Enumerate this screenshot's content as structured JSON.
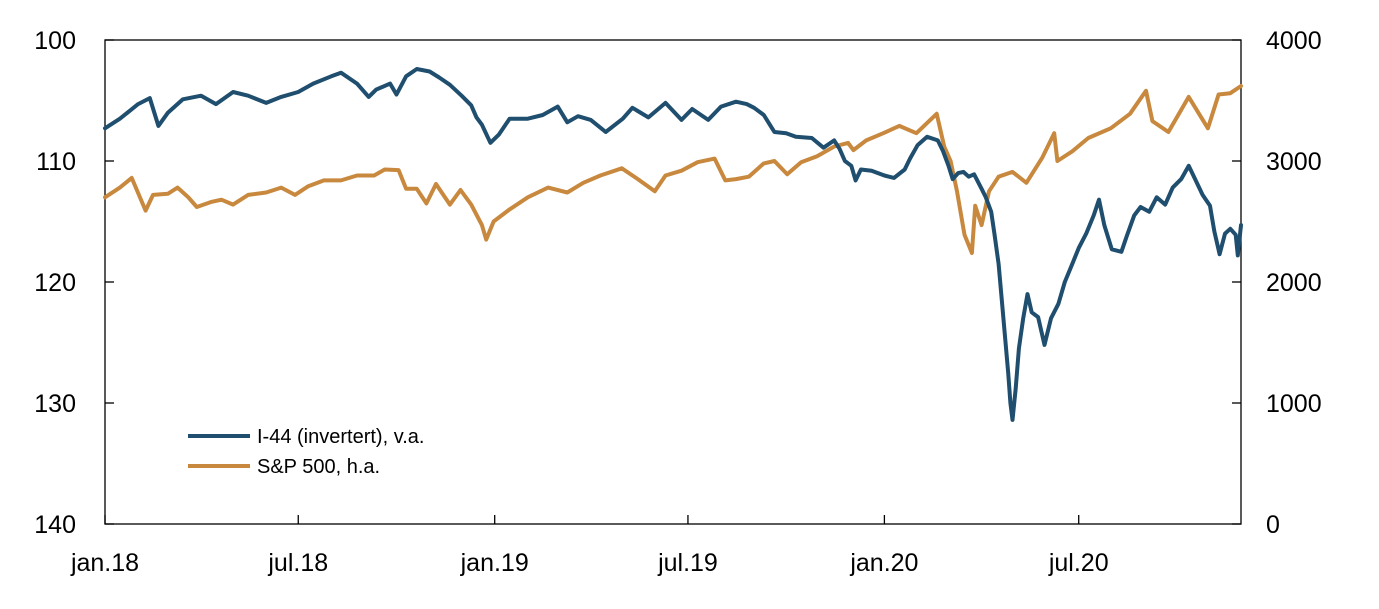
{
  "chart_data": {
    "type": "line",
    "title": "",
    "xlabel": "",
    "ylabel_left": "",
    "ylabel_right": "",
    "x_ticks": [
      {
        "date": "2018-01-01",
        "label": "jan.18"
      },
      {
        "date": "2018-07-01",
        "label": "jul.18"
      },
      {
        "date": "2019-01-01",
        "label": "jan.19"
      },
      {
        "date": "2019-07-01",
        "label": "jul.19"
      },
      {
        "date": "2020-01-01",
        "label": "jan.20"
      },
      {
        "date": "2020-07-01",
        "label": "jul.20"
      }
    ],
    "xlim": [
      "2018-01-01",
      "2020-11-30"
    ],
    "y_left": {
      "range": [
        100,
        140
      ],
      "inverted": true,
      "ticks": [
        100,
        110,
        120,
        130,
        140
      ]
    },
    "y_right": {
      "range": [
        0,
        4000
      ],
      "ticks": [
        0,
        1000,
        2000,
        3000,
        4000
      ]
    },
    "grid": false,
    "legend_position": "bottom-left",
    "series": [
      {
        "name": "I-44 (invertert), v.a.",
        "axis": "left",
        "color": "#1f4e6e",
        "points": [
          [
            "2018-01-01",
            107.3
          ],
          [
            "2018-01-15",
            106.5
          ],
          [
            "2018-02-01",
            105.3
          ],
          [
            "2018-02-12",
            104.8
          ],
          [
            "2018-02-20",
            107.1
          ],
          [
            "2018-03-01",
            106.0
          ],
          [
            "2018-03-15",
            104.9
          ],
          [
            "2018-04-01",
            104.6
          ],
          [
            "2018-04-15",
            105.3
          ],
          [
            "2018-05-01",
            104.3
          ],
          [
            "2018-05-15",
            104.6
          ],
          [
            "2018-06-01",
            105.2
          ],
          [
            "2018-06-15",
            104.7
          ],
          [
            "2018-07-01",
            104.3
          ],
          [
            "2018-07-15",
            103.6
          ],
          [
            "2018-08-01",
            103.0
          ],
          [
            "2018-08-10",
            102.7
          ],
          [
            "2018-08-25",
            103.6
          ],
          [
            "2018-09-05",
            104.7
          ],
          [
            "2018-09-12",
            104.1
          ],
          [
            "2018-09-25",
            103.6
          ],
          [
            "2018-10-01",
            104.5
          ],
          [
            "2018-10-10",
            103.0
          ],
          [
            "2018-10-20",
            102.4
          ],
          [
            "2018-11-01",
            102.6
          ],
          [
            "2018-11-10",
            103.1
          ],
          [
            "2018-11-20",
            103.7
          ],
          [
            "2018-12-01",
            104.6
          ],
          [
            "2018-12-10",
            105.4
          ],
          [
            "2018-12-15",
            106.4
          ],
          [
            "2018-12-20",
            107.0
          ],
          [
            "2018-12-28",
            108.5
          ],
          [
            "2019-01-05",
            107.8
          ],
          [
            "2019-01-15",
            106.5
          ],
          [
            "2019-02-01",
            106.5
          ],
          [
            "2019-02-15",
            106.2
          ],
          [
            "2019-03-01",
            105.5
          ],
          [
            "2019-03-10",
            106.8
          ],
          [
            "2019-03-20",
            106.3
          ],
          [
            "2019-04-01",
            106.6
          ],
          [
            "2019-04-15",
            107.6
          ],
          [
            "2019-05-01",
            106.5
          ],
          [
            "2019-05-10",
            105.6
          ],
          [
            "2019-05-25",
            106.4
          ],
          [
            "2019-06-10",
            105.2
          ],
          [
            "2019-06-25",
            106.6
          ],
          [
            "2019-07-05",
            105.7
          ],
          [
            "2019-07-20",
            106.6
          ],
          [
            "2019-08-01",
            105.5
          ],
          [
            "2019-08-15",
            105.1
          ],
          [
            "2019-08-25",
            105.3
          ],
          [
            "2019-09-01",
            105.6
          ],
          [
            "2019-09-10",
            106.2
          ],
          [
            "2019-09-20",
            107.6
          ],
          [
            "2019-10-01",
            107.7
          ],
          [
            "2019-10-10",
            108.0
          ],
          [
            "2019-10-25",
            108.1
          ],
          [
            "2019-11-05",
            108.9
          ],
          [
            "2019-11-15",
            108.3
          ],
          [
            "2019-11-20",
            109.0
          ],
          [
            "2019-11-25",
            110.0
          ],
          [
            "2019-12-01",
            110.4
          ],
          [
            "2019-12-05",
            111.6
          ],
          [
            "2019-12-10",
            110.7
          ],
          [
            "2019-12-20",
            110.8
          ],
          [
            "2020-01-01",
            111.2
          ],
          [
            "2020-01-10",
            111.4
          ],
          [
            "2020-01-20",
            110.7
          ],
          [
            "2020-01-25",
            109.8
          ],
          [
            "2020-02-01",
            108.7
          ],
          [
            "2020-02-10",
            108.0
          ],
          [
            "2020-02-20",
            108.3
          ],
          [
            "2020-02-25",
            109.2
          ],
          [
            "2020-03-01",
            110.4
          ],
          [
            "2020-03-05",
            111.5
          ],
          [
            "2020-03-10",
            111.0
          ],
          [
            "2020-03-15",
            110.9
          ],
          [
            "2020-03-20",
            111.3
          ],
          [
            "2020-03-25",
            111.1
          ],
          [
            "2020-04-01",
            112.3
          ],
          [
            "2020-04-05",
            113.0
          ],
          [
            "2020-04-10",
            114.2
          ],
          [
            "2020-04-13",
            116.0
          ],
          [
            "2020-04-17",
            118.5
          ],
          [
            "2020-04-20",
            121.5
          ],
          [
            "2020-04-23",
            124.5
          ],
          [
            "2020-04-26",
            127.5
          ],
          [
            "2020-04-28",
            130.0
          ],
          [
            "2020-04-30",
            131.4
          ],
          [
            "2020-05-03",
            128.8
          ],
          [
            "2020-05-06",
            125.5
          ],
          [
            "2020-05-10",
            123.0
          ],
          [
            "2020-05-14",
            121.0
          ],
          [
            "2020-05-18",
            122.5
          ],
          [
            "2020-05-24",
            122.9
          ],
          [
            "2020-05-30",
            125.2
          ],
          [
            "2020-06-05",
            123.0
          ],
          [
            "2020-06-12",
            121.8
          ],
          [
            "2020-06-18",
            120.0
          ],
          [
            "2020-06-25",
            118.5
          ],
          [
            "2020-07-01",
            117.2
          ],
          [
            "2020-07-08",
            116.0
          ],
          [
            "2020-07-15",
            114.5
          ],
          [
            "2020-07-20",
            113.2
          ],
          [
            "2020-07-25",
            115.3
          ],
          [
            "2020-08-01",
            117.3
          ],
          [
            "2020-08-10",
            117.5
          ],
          [
            "2020-08-15",
            116.2
          ],
          [
            "2020-08-22",
            114.5
          ],
          [
            "2020-08-28",
            113.8
          ],
          [
            "2020-09-05",
            114.2
          ],
          [
            "2020-09-12",
            113.0
          ],
          [
            "2020-09-20",
            113.6
          ],
          [
            "2020-09-27",
            112.2
          ],
          [
            "2020-10-05",
            111.5
          ],
          [
            "2020-10-12",
            110.4
          ],
          [
            "2020-10-18",
            111.5
          ],
          [
            "2020-10-25",
            112.8
          ],
          [
            "2020-11-01",
            113.7
          ],
          [
            "2020-11-05",
            115.8
          ],
          [
            "2020-11-10",
            117.7
          ],
          [
            "2020-11-15",
            116.0
          ],
          [
            "2020-11-20",
            115.6
          ],
          [
            "2020-11-25",
            116.1
          ],
          [
            "2020-11-27",
            117.8
          ],
          [
            "2020-11-30",
            115.3
          ]
        ]
      },
      {
        "name": "S&P 500, h.a.",
        "axis": "right",
        "color": "#c8893f",
        "points": [
          [
            "2018-01-01",
            2700
          ],
          [
            "2018-01-15",
            2780
          ],
          [
            "2018-01-26",
            2860
          ],
          [
            "2018-02-08",
            2590
          ],
          [
            "2018-02-15",
            2720
          ],
          [
            "2018-03-01",
            2730
          ],
          [
            "2018-03-10",
            2780
          ],
          [
            "2018-03-20",
            2700
          ],
          [
            "2018-03-28",
            2620
          ],
          [
            "2018-04-10",
            2660
          ],
          [
            "2018-04-20",
            2680
          ],
          [
            "2018-05-01",
            2640
          ],
          [
            "2018-05-15",
            2720
          ],
          [
            "2018-06-01",
            2740
          ],
          [
            "2018-06-15",
            2780
          ],
          [
            "2018-06-28",
            2720
          ],
          [
            "2018-07-10",
            2790
          ],
          [
            "2018-07-25",
            2840
          ],
          [
            "2018-08-10",
            2840
          ],
          [
            "2018-08-25",
            2880
          ],
          [
            "2018-09-10",
            2880
          ],
          [
            "2018-09-20",
            2930
          ],
          [
            "2018-10-03",
            2925
          ],
          [
            "2018-10-10",
            2770
          ],
          [
            "2018-10-20",
            2770
          ],
          [
            "2018-10-29",
            2650
          ],
          [
            "2018-11-07",
            2810
          ],
          [
            "2018-11-20",
            2640
          ],
          [
            "2018-11-30",
            2760
          ],
          [
            "2018-12-10",
            2640
          ],
          [
            "2018-12-20",
            2470
          ],
          [
            "2018-12-24",
            2350
          ],
          [
            "2018-12-31",
            2500
          ],
          [
            "2019-01-15",
            2600
          ],
          [
            "2019-02-01",
            2700
          ],
          [
            "2019-02-20",
            2780
          ],
          [
            "2019-03-10",
            2740
          ],
          [
            "2019-03-25",
            2820
          ],
          [
            "2019-04-10",
            2880
          ],
          [
            "2019-04-30",
            2940
          ],
          [
            "2019-05-15",
            2850
          ],
          [
            "2019-05-31",
            2750
          ],
          [
            "2019-06-10",
            2880
          ],
          [
            "2019-06-25",
            2920
          ],
          [
            "2019-07-10",
            2990
          ],
          [
            "2019-07-26",
            3020
          ],
          [
            "2019-08-05",
            2840
          ],
          [
            "2019-08-15",
            2850
          ],
          [
            "2019-08-27",
            2870
          ],
          [
            "2019-09-10",
            2980
          ],
          [
            "2019-09-20",
            3000
          ],
          [
            "2019-10-02",
            2890
          ],
          [
            "2019-10-15",
            2990
          ],
          [
            "2019-10-30",
            3040
          ],
          [
            "2019-11-15",
            3120
          ],
          [
            "2019-11-28",
            3150
          ],
          [
            "2019-12-03",
            3090
          ],
          [
            "2019-12-15",
            3170
          ],
          [
            "2019-12-31",
            3230
          ],
          [
            "2020-01-15",
            3290
          ],
          [
            "2020-01-31",
            3230
          ],
          [
            "2020-02-19",
            3390
          ],
          [
            "2020-02-26",
            3120
          ],
          [
            "2020-03-03",
            3000
          ],
          [
            "2020-03-09",
            2750
          ],
          [
            "2020-03-16",
            2390
          ],
          [
            "2020-03-23",
            2240
          ],
          [
            "2020-03-26",
            2630
          ],
          [
            "2020-04-01",
            2470
          ],
          [
            "2020-04-08",
            2750
          ],
          [
            "2020-04-17",
            2870
          ],
          [
            "2020-04-30",
            2910
          ],
          [
            "2020-05-13",
            2820
          ],
          [
            "2020-05-28",
            3030
          ],
          [
            "2020-06-08",
            3230
          ],
          [
            "2020-06-11",
            3000
          ],
          [
            "2020-06-25",
            3080
          ],
          [
            "2020-07-10",
            3190
          ],
          [
            "2020-07-31",
            3270
          ],
          [
            "2020-08-18",
            3390
          ],
          [
            "2020-09-02",
            3580
          ],
          [
            "2020-09-08",
            3330
          ],
          [
            "2020-09-23",
            3240
          ],
          [
            "2020-10-12",
            3530
          ],
          [
            "2020-10-30",
            3270
          ],
          [
            "2020-11-09",
            3550
          ],
          [
            "2020-11-20",
            3560
          ],
          [
            "2020-11-30",
            3620
          ]
        ]
      }
    ]
  }
}
